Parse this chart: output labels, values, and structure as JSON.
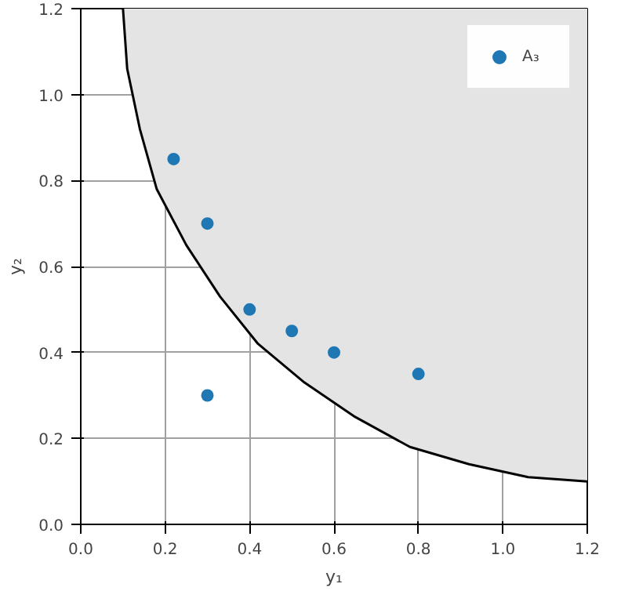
{
  "chart_data": {
    "type": "scatter",
    "xlabel": "y₁",
    "ylabel": "y₂",
    "xlim": [
      0,
      1.2
    ],
    "ylim": [
      0,
      1.2
    ],
    "xticks": [
      {
        "value": 0,
        "label": "0.0"
      },
      {
        "value": 0.2,
        "label": "0.2"
      },
      {
        "value": 0.4,
        "label": "0.4"
      },
      {
        "value": 0.6,
        "label": "0.6"
      },
      {
        "value": 0.8,
        "label": "0.8"
      },
      {
        "value": 1.0,
        "label": "1.0"
      },
      {
        "value": 1.2,
        "label": "1.2"
      }
    ],
    "yticks": [
      {
        "value": 0,
        "label": "0.0"
      },
      {
        "value": 0.2,
        "label": "0.2"
      },
      {
        "value": 0.4,
        "label": "0.4"
      },
      {
        "value": 0.6,
        "label": "0.6"
      },
      {
        "value": 0.8,
        "label": "0.8"
      },
      {
        "value": 1.0,
        "label": "1.0"
      },
      {
        "value": 1.2,
        "label": "1.2"
      }
    ],
    "grid": true,
    "legend": "top right",
    "series": [
      {
        "type": "line",
        "marker": "none",
        "color": "#000000",
        "x": [
          0.1,
          0.11,
          0.14,
          0.18,
          0.25,
          0.33,
          0.42,
          0.53,
          0.65,
          0.78,
          0.92,
          1.06,
          1.2
        ],
        "values": [
          1.2,
          1.06,
          0.92,
          0.78,
          0.65,
          0.53,
          0.42,
          0.33,
          0.25,
          0.18,
          0.14,
          0.11,
          0.1
        ],
        "lower": [
          1.2,
          1.06,
          0.92,
          0.78,
          0.65,
          0.53,
          0.42,
          0.33,
          0.25,
          0.18,
          0.14,
          0.11,
          0.1
        ],
        "upper": [
          1.2,
          1.2,
          1.2,
          1.2,
          1.2,
          1.2,
          1.2,
          1.2,
          1.2,
          1.2,
          1.2,
          1.2,
          1.2
        ]
      },
      {
        "marker": "circle",
        "name": "A₃",
        "color": "#1f77b4",
        "x": [
          0.22,
          0.3,
          0.4,
          0.5,
          0.6,
          0.8,
          0.3
        ],
        "values": [
          0.85,
          0.7,
          0.5,
          0.45,
          0.4,
          0.35,
          0.3
        ]
      }
    ]
  }
}
